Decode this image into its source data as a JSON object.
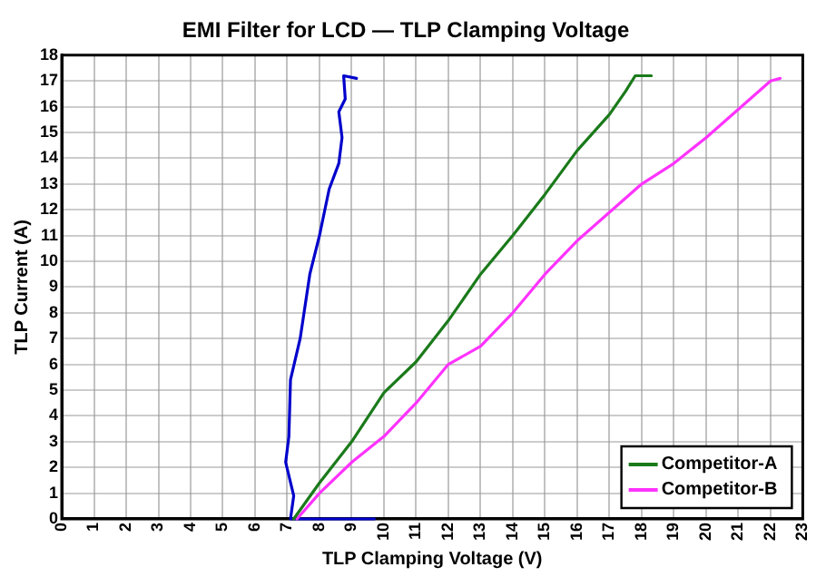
{
  "chart_data": {
    "type": "line",
    "title": "EMI Filter for LCD — TLP Clamping Voltage",
    "xlabel": "TLP Clamping Voltage (V)",
    "ylabel": "TLP Current (A)",
    "xlim": [
      0,
      23
    ],
    "xticks": [
      0,
      1,
      2,
      3,
      4,
      5,
      6,
      7,
      8,
      9,
      10,
      11,
      12,
      13,
      14,
      15,
      16,
      17,
      18,
      19,
      20,
      21,
      22,
      23
    ],
    "ylim": [
      0,
      18
    ],
    "yticks": [
      0,
      1,
      2,
      3,
      4,
      5,
      6,
      7,
      8,
      9,
      10,
      11,
      12,
      13,
      14,
      15,
      16,
      17,
      18
    ],
    "grid": true,
    "legend": "bottom right",
    "marker": "none",
    "line_style": "solid",
    "series": [
      {
        "name": "Competitor-A",
        "color": "#1a7a1a",
        "x": [
          7.2,
          8,
          9,
          10,
          11,
          12,
          13,
          14,
          15,
          16,
          17,
          17.5,
          17.8,
          18.3
        ],
        "values": [
          0,
          1.4,
          3,
          4.9,
          6.1,
          7.7,
          9.5,
          11,
          12.6,
          14.3,
          15.7,
          16.6,
          17.2,
          17.2
        ]
      },
      {
        "name": "Competitor-B",
        "color": "#ff33ff",
        "x": [
          7.3,
          8,
          9,
          10,
          11,
          12,
          13,
          14,
          15,
          16,
          17,
          18,
          19,
          20,
          21,
          22,
          22.3
        ],
        "values": [
          0,
          1,
          2.2,
          3.2,
          4.5,
          6,
          6.7,
          8,
          9.5,
          10.8,
          11.9,
          13,
          13.8,
          14.8,
          15.9,
          17,
          17.1
        ]
      },
      {
        "color": "#0000cc",
        "x": [
          9.7,
          7.1,
          7.2,
          6.95,
          7.05,
          7.1,
          7.4,
          7.7,
          8,
          8.3,
          8.6,
          8.7,
          8.6,
          8.8,
          8.75,
          9.15
        ],
        "values": [
          0,
          0,
          0.9,
          2.2,
          3.2,
          5.4,
          7,
          9.5,
          11,
          12.8,
          13.8,
          14.8,
          15.8,
          16.3,
          17.2,
          17.1
        ]
      }
    ]
  }
}
